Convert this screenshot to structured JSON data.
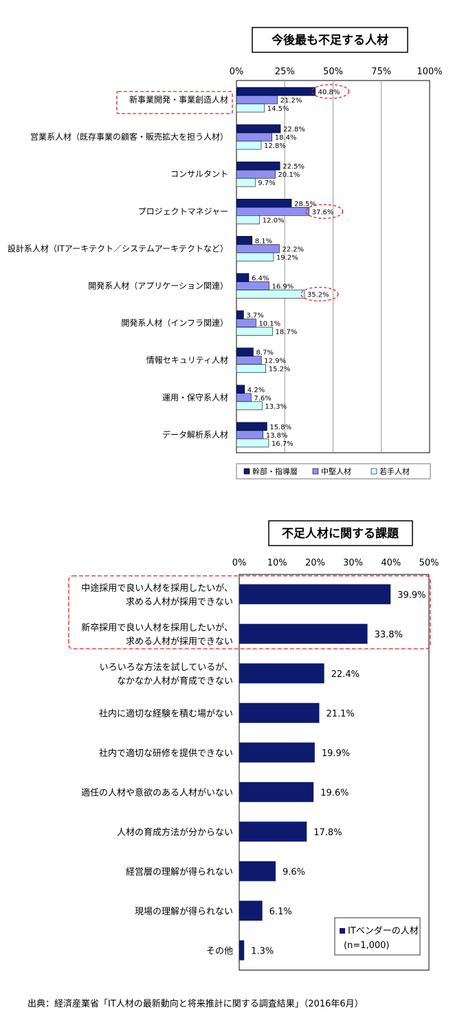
{
  "chart_data": [
    {
      "type": "bar",
      "orientation": "horizontal",
      "title": "今後最も不足する人材",
      "ticks": [
        "0%",
        "25%",
        "50%",
        "75%",
        "100%"
      ],
      "xlim": [
        0,
        100
      ],
      "grid": true,
      "legend_position": "bottom",
      "categories": [
        "新事業開発・事業創造人材",
        "営業系人材（既存事業の顧客・販売拡大を担う人材）",
        "コンサルタント",
        "プロジェクトマネジャー",
        "設計系人材（ITアーキテクト／システムアーキテクトなど）",
        "開発系人材（アプリケーション関連）",
        "開発系人材（インフラ関連）",
        "情報セキュリティ人材",
        "運用・保守系人材",
        "データ解析系人材"
      ],
      "series": [
        {
          "name": "幹部・指導層",
          "color": "#0d1a6e",
          "values": [
            40.8,
            22.8,
            22.5,
            28.5,
            8.1,
            6.4,
            3.7,
            8.7,
            4.2,
            15.8
          ],
          "labels": [
            "40.8%",
            "22.8%",
            "22.5%",
            "28.5%",
            "8.1%",
            "6.4%",
            "3.7%",
            "8.7%",
            "4.2%",
            "15.8%"
          ]
        },
        {
          "name": "中堅人材",
          "color": "#8f8ff0",
          "values": [
            21.2,
            18.4,
            20.1,
            37.6,
            22.2,
            16.9,
            10.1,
            12.9,
            7.6,
            13.8
          ],
          "labels": [
            "21.2%",
            "18.4%",
            "20.1%",
            "37.6%",
            "22.2%",
            "16.9%",
            "10.1%",
            "12.9%",
            "7.6%",
            "13.8%"
          ]
        },
        {
          "name": "若手人材",
          "color": "#ccffff",
          "values": [
            14.5,
            12.8,
            9.7,
            12.0,
            19.2,
            35.2,
            18.7,
            15.2,
            13.3,
            16.7
          ],
          "labels": [
            "14.5%",
            "12.8%",
            "9.7%",
            "12.0%",
            "19.2%",
            "35.2%",
            "18.7%",
            "15.2%",
            "13.3%",
            "16.7%"
          ]
        }
      ],
      "highlighted_category": 0,
      "highlighted_values": [
        [
          0,
          0
        ],
        [
          3,
          1
        ],
        [
          5,
          2
        ]
      ]
    },
    {
      "type": "bar",
      "orientation": "horizontal",
      "title": "不足人材に関する課題",
      "ticks": [
        "0%",
        "10%",
        "20%",
        "30%",
        "40%",
        "50%"
      ],
      "xlim": [
        0,
        50
      ],
      "grid": false,
      "legend_position": "bottom-right",
      "categories": [
        [
          "中途採用で良い人材を採用したいが、",
          "求める人材が採用できない"
        ],
        [
          "新卒採用で良い人材を採用したいが、",
          "求める人材が採用できない"
        ],
        [
          "いろいろな方法を試しているが、",
          "なかなか人材が育成できない"
        ],
        [
          "社内に適切な経験を積む場がない"
        ],
        [
          "社内で適切な研修を提供できない"
        ],
        [
          "適任の人材や意欲のある人材がいない"
        ],
        [
          "人材の育成方法が分からない"
        ],
        [
          "経営層の理解が得られない"
        ],
        [
          "現場の理解が得られない"
        ],
        [
          "その他"
        ]
      ],
      "series": [
        {
          "name": "ITベンダーの人材",
          "note": "(n=1,000)",
          "color": "#0d1a6e",
          "values": [
            39.9,
            33.8,
            22.4,
            21.1,
            19.9,
            19.6,
            17.8,
            9.6,
            6.1,
            1.3
          ],
          "labels": [
            "39.9%",
            "33.8%",
            "22.4%",
            "21.1%",
            "19.9%",
            "19.6%",
            "17.8%",
            "9.6%",
            "6.1%",
            "1.3%"
          ]
        }
      ],
      "highlighted_categories": [
        0,
        1
      ]
    }
  ],
  "source": "出典：経済産業省「IT人材の最新動向と将来推計に関する調査結果」（2016年6月）"
}
